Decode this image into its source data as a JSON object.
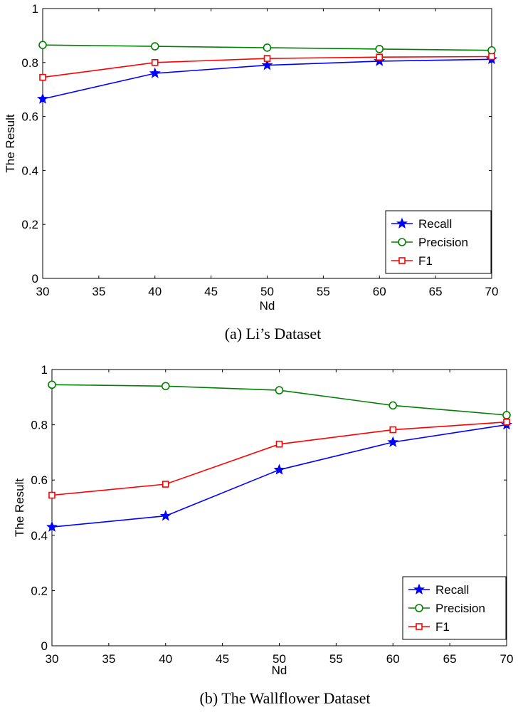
{
  "chart_data": [
    {
      "type": "line",
      "caption": "(a)  Li’s Dataset",
      "xlabel": "Nd",
      "ylabel": "The Result",
      "xlim": [
        30,
        70
      ],
      "ylim": [
        0,
        1
      ],
      "xticks": [
        "30",
        "35",
        "40",
        "45",
        "50",
        "55",
        "60",
        "65",
        "70"
      ],
      "yticks": [
        "0",
        "0.2",
        "0.4",
        "0.6",
        "0.8",
        "1"
      ],
      "grid": false,
      "legend_position": "bottom-right",
      "x": [
        30,
        40,
        50,
        60,
        70
      ],
      "series": [
        {
          "name": "Recall",
          "color": "#0000ff",
          "marker": "star",
          "values": [
            0.665,
            0.76,
            0.79,
            0.805,
            0.812
          ]
        },
        {
          "name": "Precision",
          "color": "#008000",
          "marker": "circle",
          "values": [
            0.865,
            0.86,
            0.855,
            0.85,
            0.845
          ]
        },
        {
          "name": "F1",
          "color": "#ff0000",
          "marker": "square",
          "values": [
            0.745,
            0.8,
            0.815,
            0.82,
            0.822
          ]
        }
      ]
    },
    {
      "type": "line",
      "caption": "(b)  The Wallflower Dataset",
      "xlabel": "Nd",
      "ylabel": "The Result",
      "xlim": [
        30,
        70
      ],
      "ylim": [
        0,
        1
      ],
      "xticks": [
        "30",
        "35",
        "40",
        "45",
        "50",
        "55",
        "60",
        "65",
        "70"
      ],
      "yticks": [
        "0",
        "0.2",
        "0.4",
        "0.6",
        "0.8",
        "1"
      ],
      "grid": false,
      "legend_position": "bottom-right",
      "x": [
        30,
        40,
        50,
        60,
        70
      ],
      "series": [
        {
          "name": "Recall",
          "color": "#0000ff",
          "marker": "star",
          "values": [
            0.43,
            0.47,
            0.637,
            0.737,
            0.8
          ]
        },
        {
          "name": "Precision",
          "color": "#008000",
          "marker": "circle",
          "values": [
            0.945,
            0.94,
            0.925,
            0.87,
            0.835
          ]
        },
        {
          "name": "F1",
          "color": "#ff0000",
          "marker": "square",
          "values": [
            0.545,
            0.585,
            0.73,
            0.782,
            0.81
          ]
        }
      ]
    }
  ]
}
